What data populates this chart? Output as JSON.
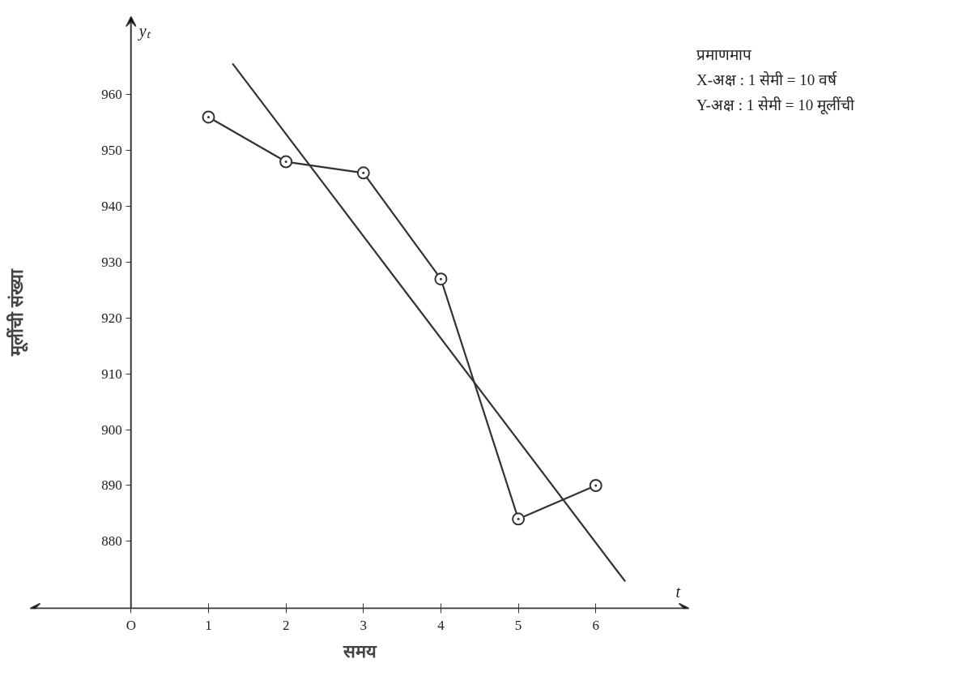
{
  "chart_data": {
    "type": "line",
    "xlabel": "समय",
    "ylabel": "मूलींची संख्या",
    "x": [
      1,
      2,
      3,
      4,
      5,
      6
    ],
    "series": [
      {
        "color": "#333333",
        "marker": "circle",
        "values": [
          956,
          948,
          946,
          927,
          884,
          890
        ]
      },
      {
        "color": "#333333",
        "marker": "none",
        "x": [
          1.31,
          6.38
        ],
        "values": [
          965.6,
          872.8
        ]
      }
    ],
    "xlim": [
      -1.3,
      7.2
    ],
    "ylim": [
      868,
      974
    ],
    "xticks": [
      {
        "value": 0,
        "label": "O"
      },
      1,
      2,
      3,
      4,
      5,
      6
    ],
    "yticks": [
      880,
      890,
      900,
      910,
      920,
      930,
      940,
      950,
      960
    ],
    "grid": false,
    "annotations": [
      "yₜ",
      "t",
      "प्रमाणमाप",
      "X-अक्ष : 1 सेमी = 10 वर्ष",
      "Y-अक्ष : 1 सेमी = 10 मूलींची"
    ]
  }
}
